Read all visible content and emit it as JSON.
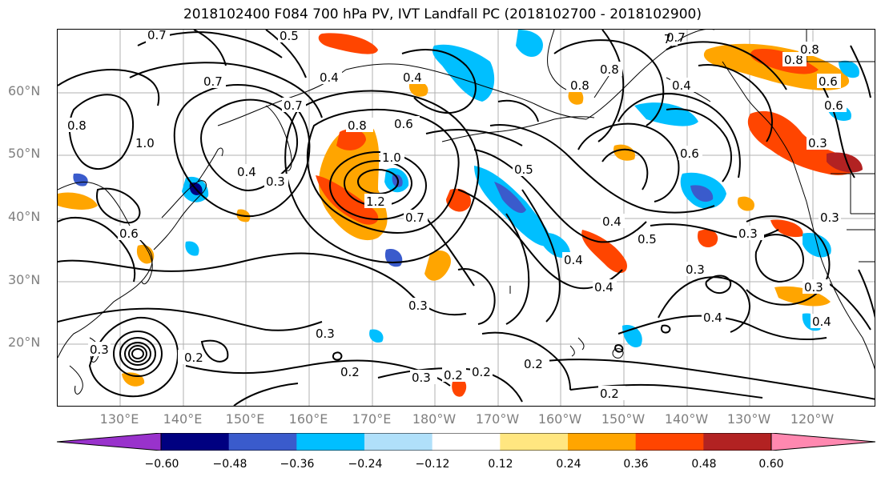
{
  "title": "2018102400 F084 700 hPa PV, IVT Landfall PC (2018102700 - 2018102900)",
  "lat_labels": [
    {
      "id": "lat-60",
      "text": "60°N"
    },
    {
      "id": "lat-50",
      "text": "50°N"
    },
    {
      "id": "lat-40",
      "text": "40°N"
    },
    {
      "id": "lat-30",
      "text": "30°N"
    },
    {
      "id": "lat-20",
      "text": "20°N"
    }
  ],
  "lon_labels": [
    "130°E",
    "140°E",
    "150°E",
    "160°E",
    "170°E",
    "180°W",
    "170°W",
    "160°W",
    "150°W",
    "140°W",
    "130°W",
    "120°W"
  ],
  "colorbar": {
    "ticks": [
      "−0.60",
      "−0.48",
      "−0.36",
      "−0.24",
      "−0.12",
      "0.12",
      "0.24",
      "0.36",
      "0.48",
      "0.60"
    ],
    "colors": [
      "#9932cc",
      "#000080",
      "#3a5bcc",
      "#00bfff",
      "#b0e0fa",
      "#ffffff",
      "#ffe680",
      "#ffa500",
      "#ff4500",
      "#b22222",
      "#ff88b0"
    ]
  },
  "contour_labels": [
    {
      "text": "0.5"
    },
    {
      "text": "0.4"
    },
    {
      "text": "0.7"
    },
    {
      "text": "0.7"
    },
    {
      "text": "0.4"
    },
    {
      "text": "0.8"
    },
    {
      "text": "0.8"
    },
    {
      "text": "1.0"
    },
    {
      "text": "0.7"
    },
    {
      "text": "0.4"
    },
    {
      "text": "0.3"
    },
    {
      "text": "0.8"
    },
    {
      "text": "0.6"
    },
    {
      "text": "1.0"
    },
    {
      "text": "1.2"
    },
    {
      "text": "0.7"
    },
    {
      "text": "0.5"
    },
    {
      "text": "0.7"
    },
    {
      "text": "0.8"
    },
    {
      "text": "0.4"
    },
    {
      "text": "0.6"
    },
    {
      "text": "0.4"
    },
    {
      "text": "0.5"
    },
    {
      "text": "0.4"
    },
    {
      "text": "0.4"
    },
    {
      "text": "0.3"
    },
    {
      "text": "0.3"
    },
    {
      "text": "0.3"
    },
    {
      "text": "0.4"
    },
    {
      "text": "0.3"
    },
    {
      "text": "0.2"
    },
    {
      "text": "0.3"
    },
    {
      "text": "0.2"
    },
    {
      "text": "0.3"
    },
    {
      "text": "0.2"
    },
    {
      "text": "0.2"
    },
    {
      "text": "0.2"
    },
    {
      "text": "0.2"
    },
    {
      "text": "0.3"
    },
    {
      "text": "0.8"
    },
    {
      "text": "0.6"
    },
    {
      "text": "0.3"
    },
    {
      "text": "0.3"
    },
    {
      "text": "0.4"
    },
    {
      "text": "0.6"
    },
    {
      "text": "0.8"
    },
    {
      "text": "0.6"
    },
    {
      "text": "0.7"
    }
  ]
}
